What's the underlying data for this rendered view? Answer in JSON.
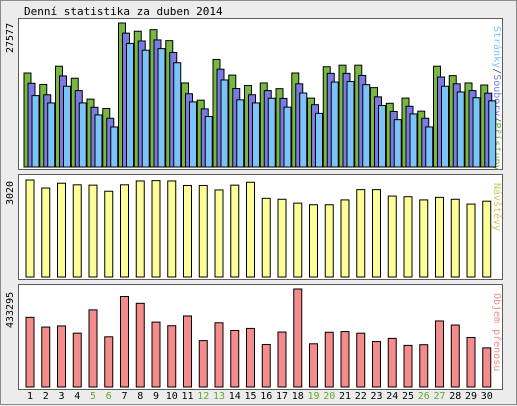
{
  "chart_data": {
    "title": "Denní statistika za duben 2014",
    "days": [
      "1",
      "2",
      "3",
      "4",
      "5",
      "6",
      "7",
      "8",
      "9",
      "10",
      "11",
      "12",
      "13",
      "14",
      "15",
      "16",
      "17",
      "18",
      "19",
      "20",
      "21",
      "22",
      "23",
      "24",
      "25",
      "26",
      "27",
      "28",
      "29",
      "30"
    ],
    "weekend_days": [
      "5",
      "6",
      "12",
      "13",
      "19",
      "20",
      "26",
      "27"
    ],
    "colors": {
      "pristupy": "#77b843",
      "soubory": "#7a7ae4",
      "stranky": "#7cc4f8",
      "navstevy": "#fefe96",
      "objem": "#f48c8c",
      "weekday_label": "#000000",
      "weekend_label": "#62a830"
    },
    "charts": [
      {
        "type": "bar",
        "ymax_label": "27577",
        "ymax": 27577,
        "series": [
          {
            "name": "Přístupy",
            "values": [
              18000,
              15800,
              19300,
              17000,
              13000,
              11200,
              27577,
              26000,
              26300,
              24200,
              16100,
              12800,
              20600,
              17600,
              15600,
              16100,
              15000,
              18000,
              13200,
              19200,
              19500,
              19500,
              15200,
              12200,
              13200,
              10700,
              19300,
              17500,
              16100,
              15700
            ]
          },
          {
            "name": "Soubory",
            "values": [
              16800,
              14600,
              18200,
              15400,
              12200,
              10100,
              26400,
              24900,
              25100,
              22700,
              14800,
              11900,
              19500,
              15800,
              14600,
              15400,
              13900,
              16700,
              12700,
              18700,
              18700,
              18300,
              14200,
              11400,
              12400,
              10100,
              18000,
              16700,
              15400,
              14900
            ]
          },
          {
            "name": "Stránky",
            "values": [
              15200,
              13800,
              17000,
              13800,
              11500,
              9200,
              25200,
              23900,
              24200,
              21500,
              14000,
              11200,
              18200,
              14400,
              13800,
              14700,
              13000,
              15700,
              11800,
              17800,
              17900,
              17300,
              13300,
              10600,
              11700,
              9200,
              17000,
              15900,
              14800,
              14200
            ]
          }
        ],
        "legend": [
          "Stránky",
          "Soubory",
          "Přístupy"
        ]
      },
      {
        "type": "bar",
        "ymax_label": "3020",
        "ymax": 3020,
        "series": [
          {
            "name": "Návštěvy",
            "values": [
              3020,
              2770,
              2920,
              2870,
              2860,
              2670,
              2870,
              2990,
              3000,
              2990,
              2850,
              2850,
              2710,
              2860,
              2950,
              2450,
              2420,
              2300,
              2250,
              2250,
              2400,
              2720,
              2720,
              2520,
              2500,
              2400,
              2480,
              2420,
              2270,
              2360
            ]
          }
        ],
        "legend": [
          "Návštěvy"
        ]
      },
      {
        "type": "bar",
        "ymax_label": "433295",
        "ymax": 433295,
        "series": [
          {
            "name": "Objem přenosu",
            "values": [
              308000,
              265000,
              270000,
              238000,
              341000,
              222000,
              400000,
              370000,
              287000,
              271000,
              314000,
              205000,
              284000,
              250000,
              259000,
              188000,
              243000,
              433295,
              191000,
              242000,
              245000,
              238000,
              201000,
              215000,
              184000,
              187000,
              292000,
              274000,
              219000,
              173000
            ]
          }
        ],
        "legend": [
          "Objem přenosu"
        ]
      }
    ]
  }
}
